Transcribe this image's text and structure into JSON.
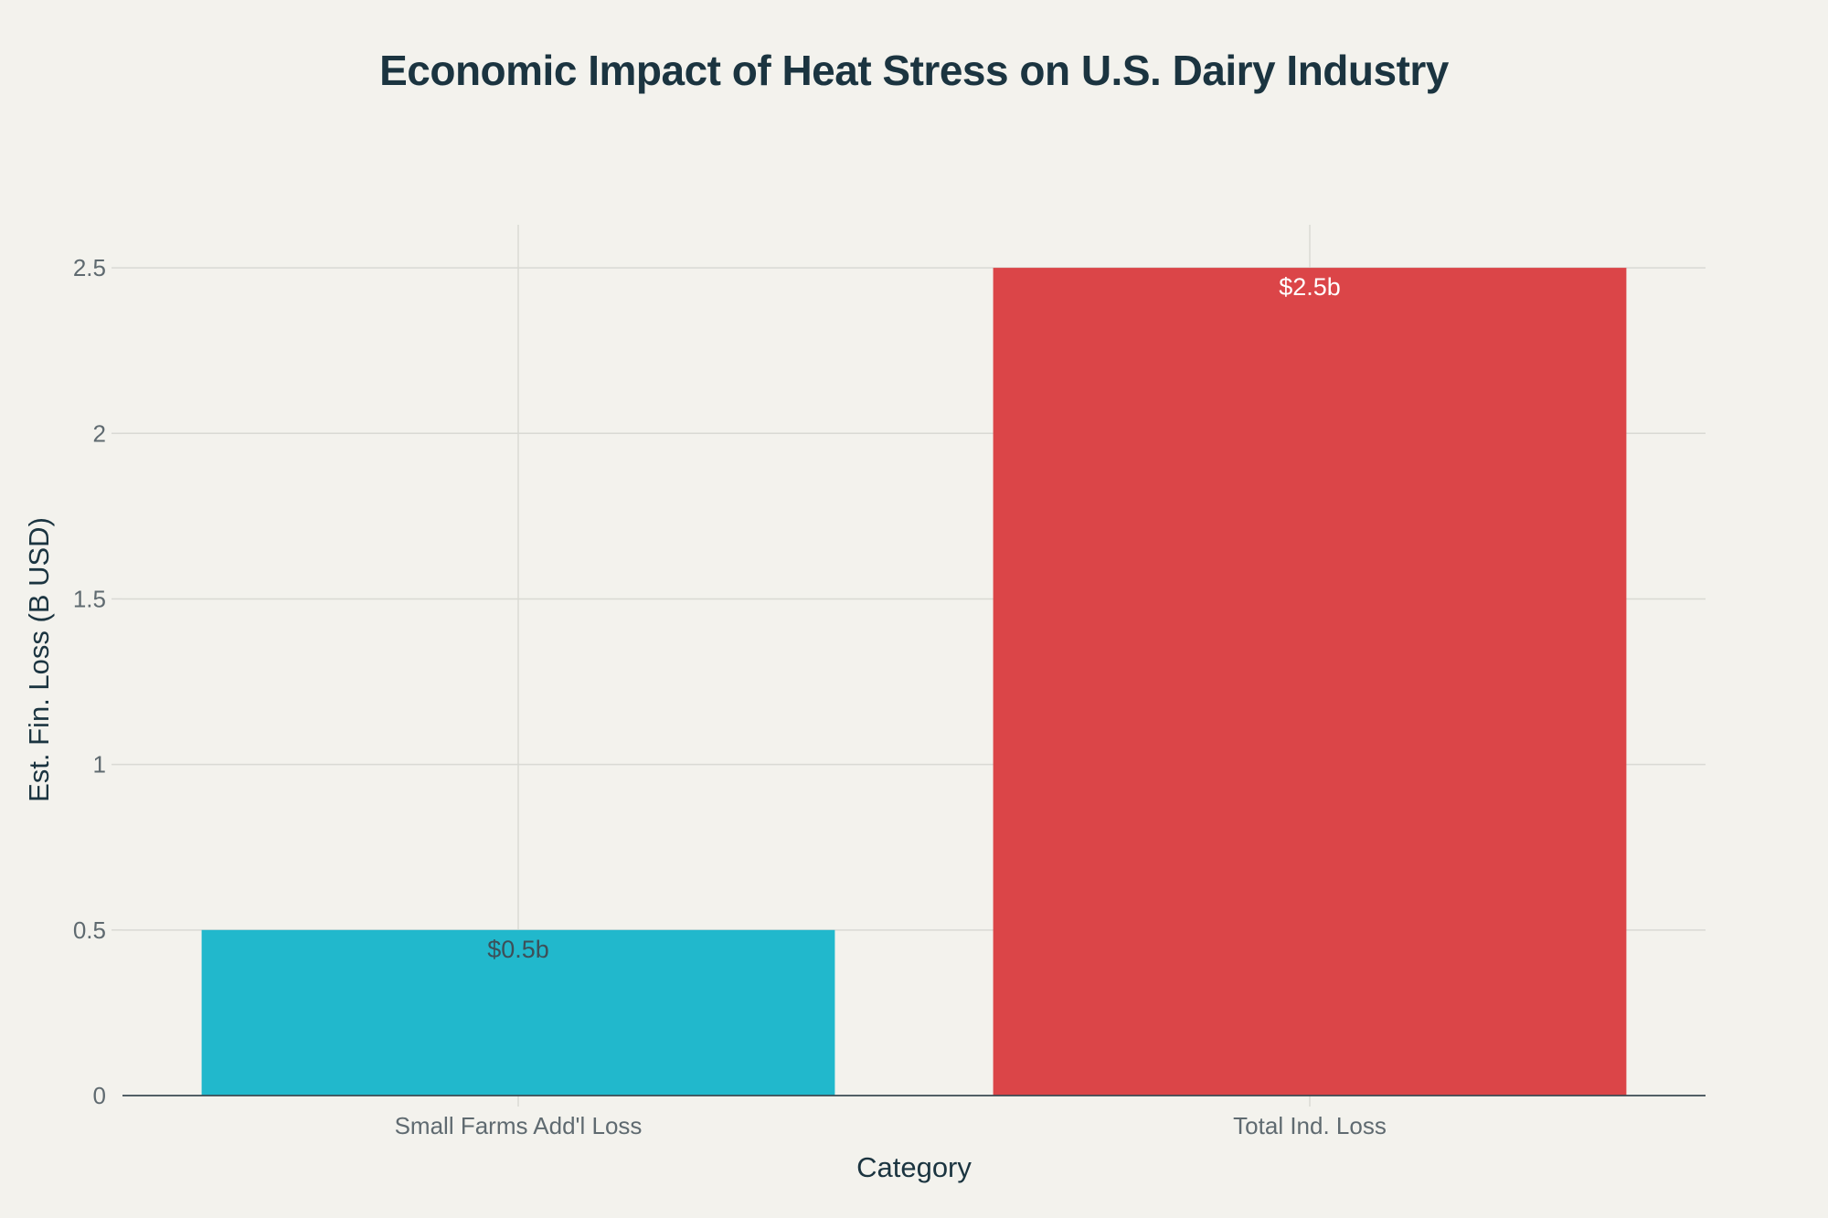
{
  "chart_data": {
    "type": "bar",
    "title": "Economic Impact of Heat Stress on U.S. Dairy Industry",
    "xlabel": "Category",
    "ylabel": "Est. Fin. Loss (B USD)",
    "categories": [
      "Small Farms Add'l Loss",
      "Total Ind. Loss"
    ],
    "values": [
      0.5,
      2.5
    ],
    "data_labels": [
      "$0.5b",
      "$2.5b"
    ],
    "bar_colors": [
      "#21b8cc",
      "#db4548"
    ],
    "data_label_colors": [
      "#3d4f58",
      "#ffffff"
    ],
    "yticks": [
      0,
      0.5,
      1,
      1.5,
      2,
      2.5
    ],
    "ytick_labels": [
      "0",
      "0.5",
      "1",
      "1.5",
      "2",
      "2.5"
    ],
    "ylim": [
      0,
      2.63
    ],
    "grid": true
  }
}
